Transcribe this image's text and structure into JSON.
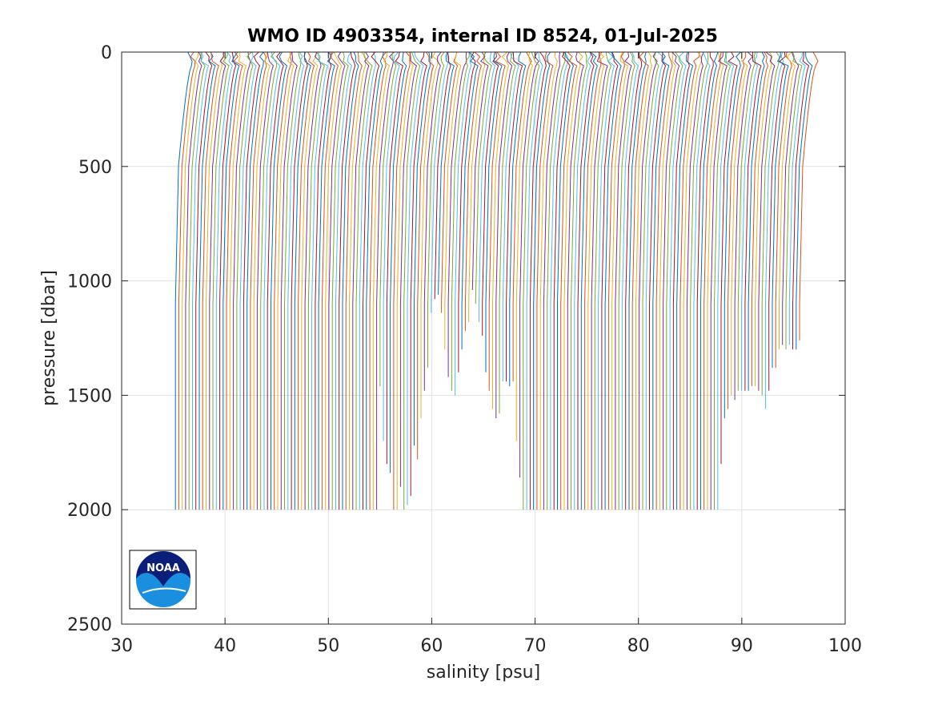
{
  "chart_data": {
    "type": "line",
    "title": "WMO ID 4903354, internal ID 8524, 01-Jul-2025",
    "xlabel": "salinity [psu]",
    "ylabel": "pressure [dbar]",
    "xlim": [
      30,
      100
    ],
    "ylim": [
      0,
      2500
    ],
    "y_reversed": true,
    "grid": true,
    "legend": "none",
    "x_ticks": [
      "30",
      "40",
      "50",
      "60",
      "70",
      "80",
      "90",
      "100"
    ],
    "y_ticks": [
      "0",
      "500",
      "1000",
      "1500",
      "2000",
      "2500"
    ],
    "series_description_note": "",
    "profile_count": 184,
    "profile_offset_step": 0.33,
    "base_salinity_deep": 35.2,
    "base_salinity_surface": 36.4,
    "profile_max_pressure": [
      2010,
      2010,
      2010,
      2010,
      2010,
      2010,
      2010,
      2010,
      2010,
      2010,
      2010,
      2010,
      2010,
      2010,
      2010,
      2010,
      2010,
      2010,
      2010,
      2010,
      2010,
      2010,
      2010,
      2010,
      2010,
      2010,
      2010,
      2010,
      2010,
      2010,
      2010,
      2010,
      2010,
      2010,
      2010,
      2010,
      2010,
      2010,
      2010,
      2010,
      2010,
      2010,
      2010,
      2010,
      2010,
      2010,
      2010,
      2010,
      2010,
      2010,
      2010,
      2010,
      2010,
      2010,
      2010,
      2010,
      2010,
      2010,
      2010,
      2010,
      1470,
      1700,
      1800,
      1850,
      2010,
      2000,
      1900,
      2010,
      1980,
      1950,
      1720,
      1780,
      1610,
      1480,
      1380,
      1150,
      1090,
      1060,
      1150,
      1300,
      1430,
      1480,
      1500,
      1400,
      1300,
      1220,
      1180,
      1050,
      1110,
      1180,
      1250,
      1400,
      1480,
      1560,
      1600,
      1580,
      1450,
      1450,
      1460,
      1450,
      1700,
      1870,
      2010,
      2010,
      2010,
      2010,
      2010,
      2010,
      2010,
      2010,
      2010,
      2010,
      2010,
      2010,
      2010,
      2010,
      2010,
      2010,
      2010,
      2010,
      2010,
      2010,
      2010,
      2010,
      2010,
      2010,
      2010,
      2010,
      2010,
      2010,
      2010,
      2010,
      2010,
      2010,
      2010,
      2010,
      2010,
      2010,
      2010,
      2010,
      2010,
      2010,
      2010,
      2010,
      2010,
      2010,
      2010,
      2010,
      2010,
      2010,
      2010,
      2010,
      2010,
      2010,
      2010,
      2010,
      2010,
      2010,
      2010,
      2010,
      1800,
      1600,
      1560,
      1500,
      1520,
      1480,
      1480,
      1480,
      1480,
      1460,
      1470,
      1490,
      1500,
      1560,
      1480,
      1380,
      1380,
      1300,
      1280,
      1300,
      1280,
      1300,
      1300,
      1270
    ],
    "colors": [
      "#0072BD",
      "#D95319",
      "#EDB120",
      "#7E2F8E",
      "#77AC30",
      "#4DBEEE",
      "#A2142F"
    ]
  },
  "logo": {
    "text": "NOAA"
  }
}
